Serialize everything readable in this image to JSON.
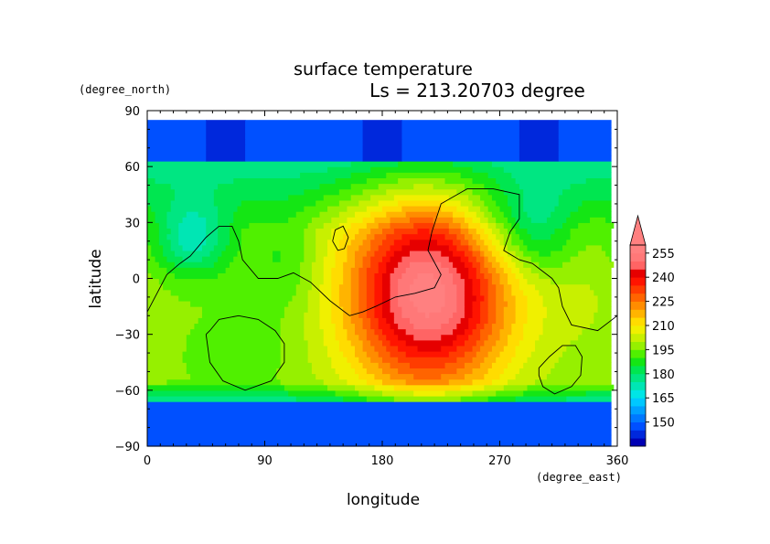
{
  "chart_data": {
    "type": "heatmap",
    "title": "surface temperature",
    "subtitle": "Ls = 213.20703 degree",
    "xlabel": "longitude",
    "ylabel": "latitude",
    "x_units": "(degree_east)",
    "y_units": "(degree_north)",
    "xlim": [
      0,
      360
    ],
    "ylim": [
      -90,
      90
    ],
    "x_ticks": [
      "0",
      "90",
      "180",
      "270",
      "360"
    ],
    "y_ticks": [
      "90",
      "60",
      "30",
      "0",
      "−30",
      "−60",
      "−90"
    ],
    "x_tick_values": [
      0,
      90,
      180,
      270,
      360
    ],
    "y_tick_values": [
      90,
      60,
      30,
      0,
      -30,
      -60,
      -90
    ],
    "colorbar": {
      "levels": [
        135,
        140,
        145,
        150,
        155,
        160,
        165,
        170,
        175,
        180,
        185,
        190,
        195,
        200,
        205,
        210,
        215,
        220,
        225,
        230,
        235,
        240,
        245,
        250,
        255,
        260
      ],
      "labels": [
        "150",
        "165",
        "180",
        "195",
        "210",
        "225",
        "240",
        "255"
      ],
      "label_values": [
        150,
        165,
        180,
        195,
        210,
        225,
        240,
        255
      ],
      "extend": "max",
      "colors": [
        "#0000b4",
        "#0028dc",
        "#0050ff",
        "#0078ff",
        "#00a0ff",
        "#00c8ff",
        "#00e6e6",
        "#00e6b4",
        "#00e682",
        "#00e650",
        "#14e614",
        "#50f000",
        "#96f000",
        "#c8f000",
        "#f0f000",
        "#ffdc00",
        "#ffb400",
        "#ff8c00",
        "#ff6400",
        "#ff3c00",
        "#ff1400",
        "#e60000",
        "#ff6464",
        "#ff7878",
        "#ff8080"
      ]
    },
    "field_summary": [
      {
        "region": "south polar cap (lat -90 to -67)",
        "value": 145
      },
      {
        "region": "north polar band (lat 62 to 85)",
        "value": 150
      },
      {
        "region": "warm core (lon 140-280, lat -62 to 45)",
        "value": 260
      },
      {
        "region": "southern mid latitudes",
        "value": 195
      },
      {
        "region": "northern low latitudes, west (lon 0-100)",
        "value": 175
      }
    ],
    "contour_lines": [
      {
        "name": "topography-main",
        "points": [
          [
            0,
            -18
          ],
          [
            15,
            2
          ],
          [
            25,
            8
          ],
          [
            33,
            12
          ],
          [
            45,
            22
          ],
          [
            55,
            28
          ],
          [
            65,
            28
          ],
          [
            70,
            20
          ],
          [
            73,
            10
          ],
          [
            85,
            0
          ],
          [
            100,
            0
          ],
          [
            112,
            3
          ],
          [
            125,
            -2
          ],
          [
            140,
            -12
          ],
          [
            155,
            -20
          ],
          [
            165,
            -18
          ],
          [
            175,
            -15
          ],
          [
            190,
            -10
          ],
          [
            205,
            -8
          ],
          [
            220,
            -5
          ],
          [
            225,
            2
          ],
          [
            215,
            15
          ],
          [
            218,
            25
          ],
          [
            225,
            40
          ],
          [
            245,
            48
          ],
          [
            265,
            48
          ],
          [
            285,
            45
          ],
          [
            285,
            32
          ],
          [
            278,
            25
          ],
          [
            273,
            15
          ],
          [
            285,
            10
          ],
          [
            295,
            8
          ],
          [
            310,
            0
          ],
          [
            315,
            -5
          ],
          [
            318,
            -15
          ],
          [
            325,
            -25
          ],
          [
            345,
            -28
          ],
          [
            360,
            -20
          ]
        ]
      },
      {
        "name": "crater-west",
        "points": [
          [
            45,
            -30
          ],
          [
            48,
            -45
          ],
          [
            58,
            -55
          ],
          [
            75,
            -60
          ],
          [
            95,
            -55
          ],
          [
            105,
            -45
          ],
          [
            105,
            -35
          ],
          [
            98,
            -28
          ],
          [
            85,
            -22
          ],
          [
            70,
            -20
          ],
          [
            55,
            -22
          ],
          [
            48,
            -28
          ],
          [
            45,
            -30
          ]
        ]
      },
      {
        "name": "crater-east",
        "points": [
          [
            300,
            -48
          ],
          [
            308,
            -42
          ],
          [
            318,
            -36
          ],
          [
            328,
            -36
          ],
          [
            333,
            -42
          ],
          [
            332,
            -52
          ],
          [
            325,
            -58
          ],
          [
            312,
            -62
          ],
          [
            303,
            -58
          ],
          [
            300,
            -52
          ],
          [
            300,
            -48
          ]
        ]
      },
      {
        "name": "small-loop",
        "points": [
          [
            142,
            20
          ],
          [
            144,
            26
          ],
          [
            150,
            28
          ],
          [
            154,
            22
          ],
          [
            151,
            16
          ],
          [
            146,
            15
          ],
          [
            142,
            20
          ]
        ]
      }
    ]
  }
}
